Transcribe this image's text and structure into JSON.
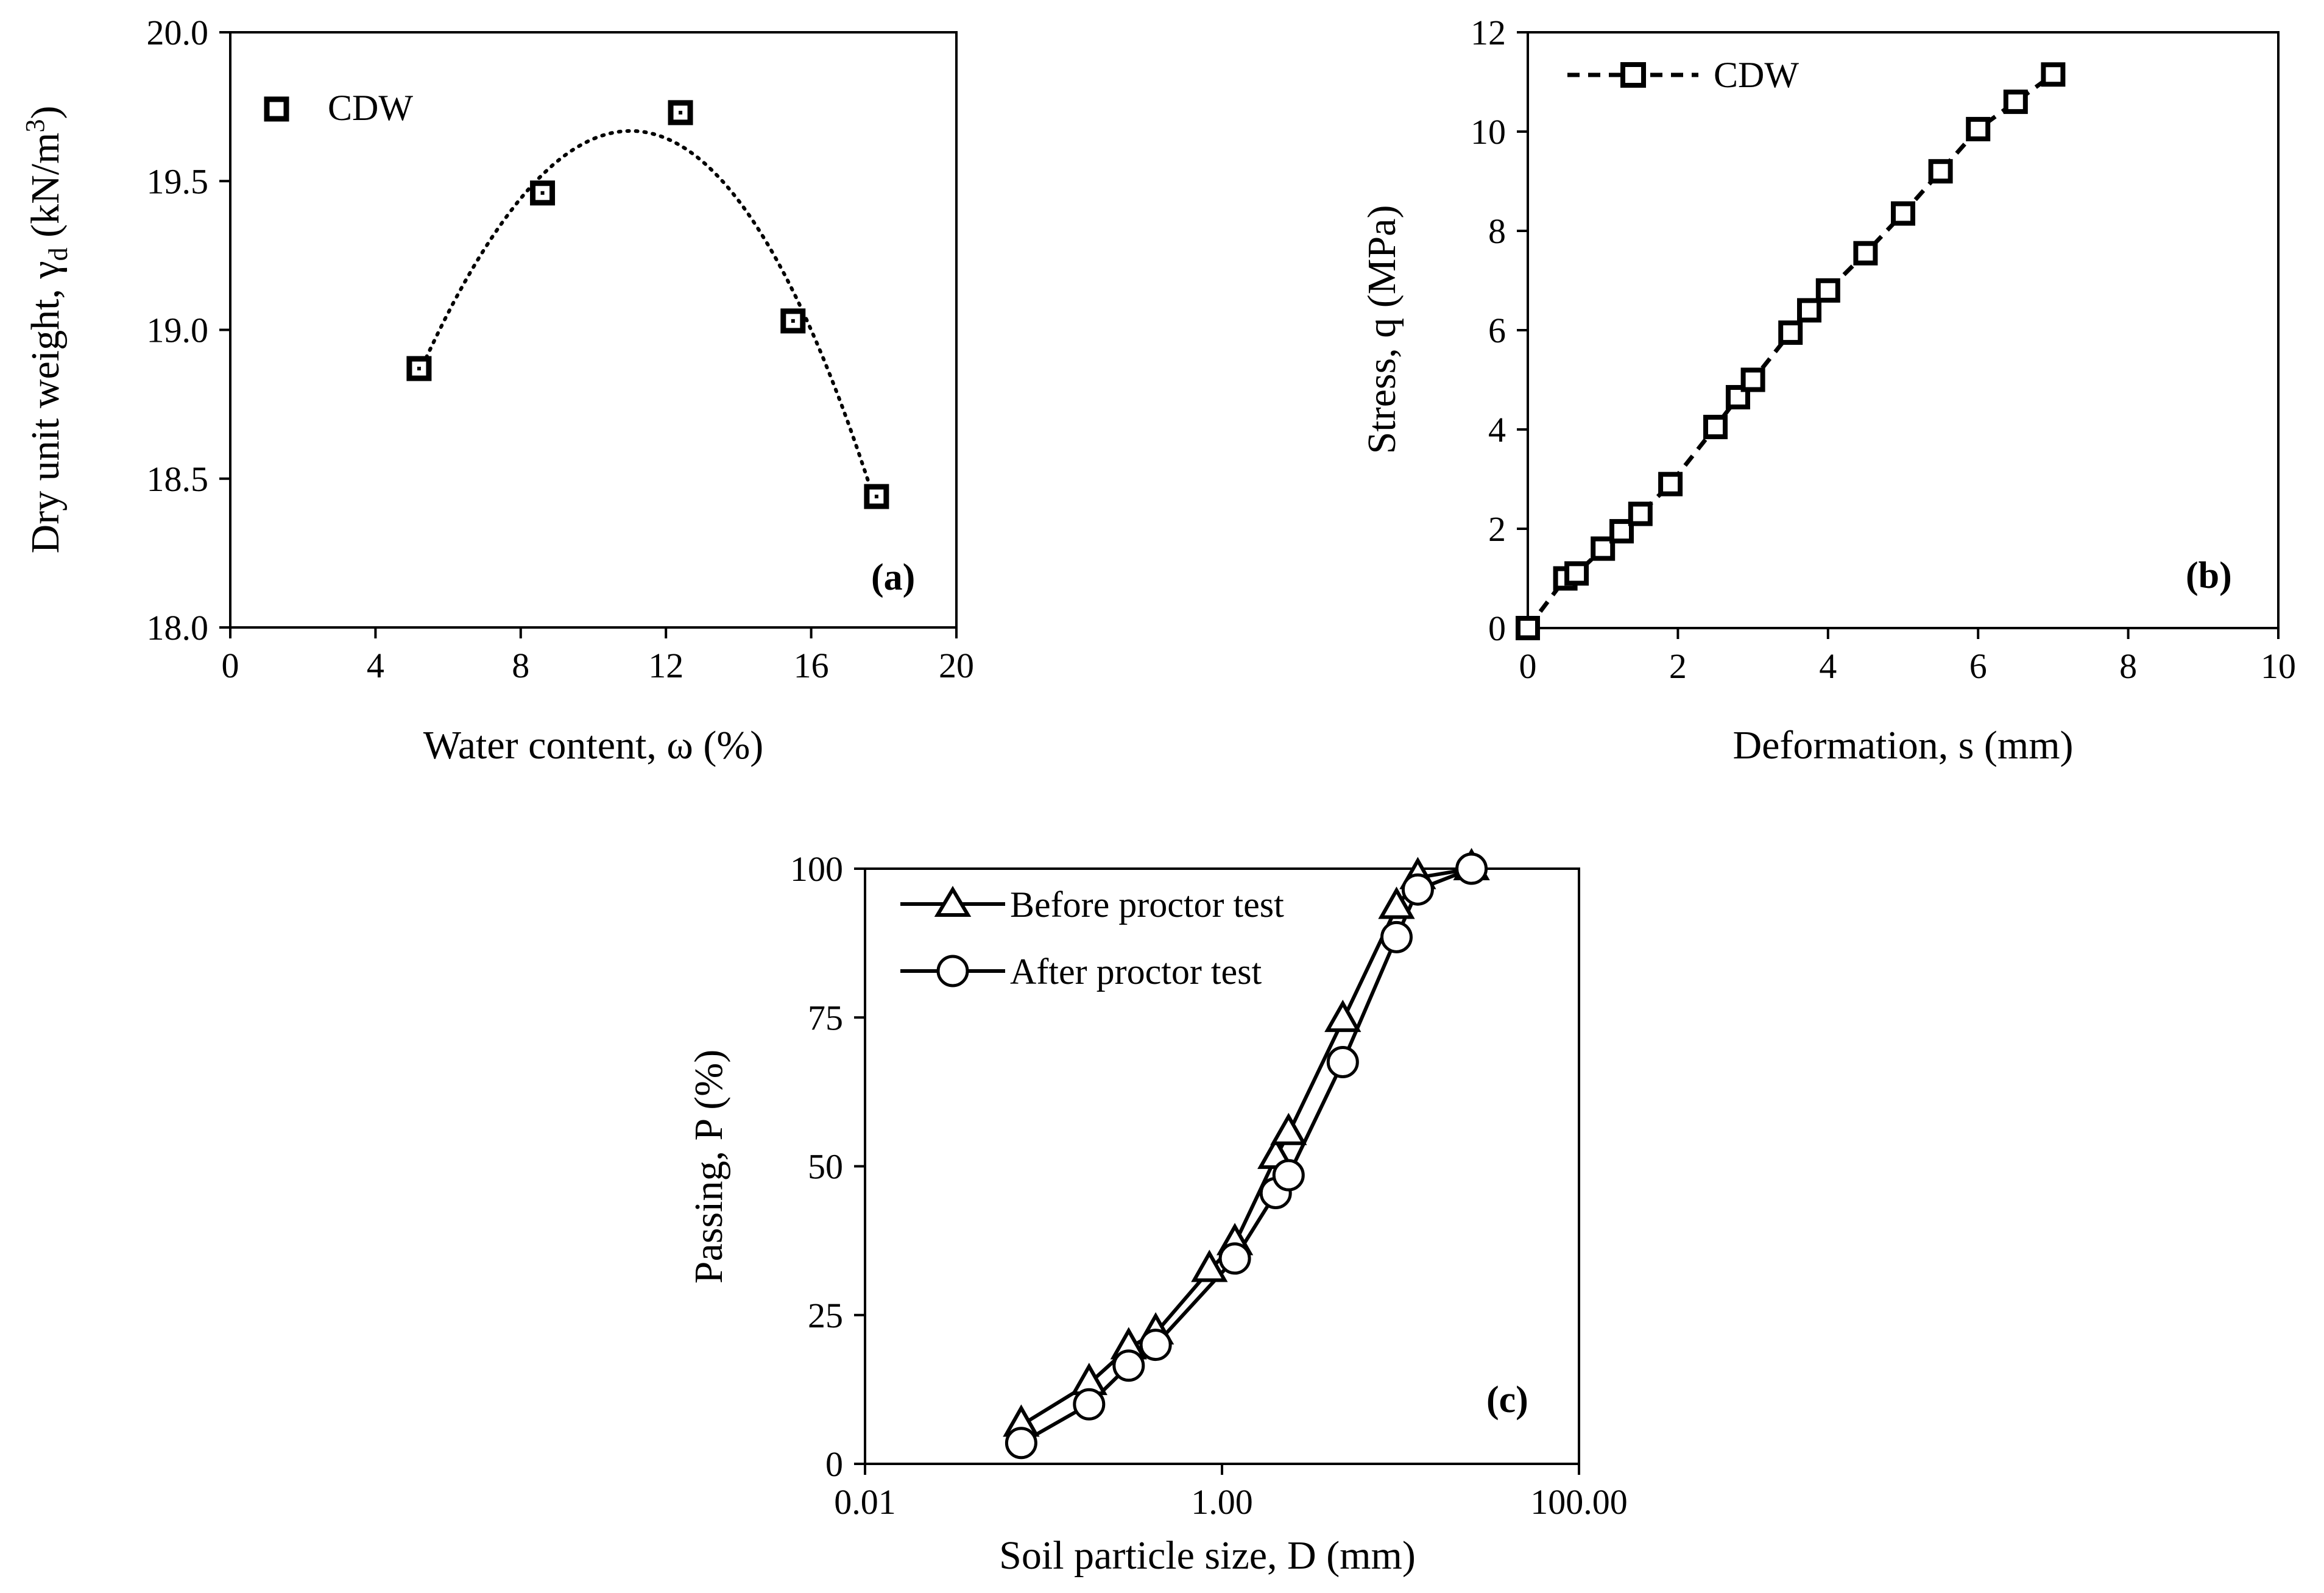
{
  "chart_data": [
    {
      "panel": "(a)",
      "type": "scatter",
      "xlabel": "Water content, ω (%)",
      "ylabel_main": "Dry unit weight, γ",
      "ylabel_sub": "d",
      "ylabel_unit_pre": " (kN/m",
      "ylabel_unit_sup": "3",
      "ylabel_unit_post": ")",
      "xlim": [
        0,
        20
      ],
      "ylim": [
        18.0,
        20.0
      ],
      "xticks": [
        "0",
        "4",
        "8",
        "12",
        "16",
        "20"
      ],
      "yticks": [
        "18.0",
        "18.5",
        "19.0",
        "19.5",
        "20.0"
      ],
      "legend_position": "top-left",
      "trendline": "dotted polynomial fit",
      "series": [
        {
          "name": "CDW",
          "marker": "square",
          "x": [
            5.2,
            8.6,
            12.4,
            15.5,
            17.8
          ],
          "y": [
            18.87,
            19.46,
            19.73,
            19.03,
            18.44
          ]
        }
      ]
    },
    {
      "panel": "(b)",
      "type": "line",
      "xlabel": "Deformation, s (mm)",
      "ylabel": "Stress, q (MPa)",
      "xlim": [
        0,
        10
      ],
      "ylim": [
        0,
        12
      ],
      "xticks": [
        "0",
        "2",
        "4",
        "6",
        "8",
        "10"
      ],
      "yticks": [
        "0",
        "2",
        "4",
        "6",
        "8",
        "10",
        "12"
      ],
      "legend_position": "top-left",
      "series": [
        {
          "name": "CDW",
          "marker": "square",
          "line": "dashed",
          "x": [
            0,
            0.5,
            0.65,
            1.0,
            1.25,
            1.5,
            1.9,
            2.5,
            2.8,
            3.0,
            3.5,
            3.75,
            4.0,
            4.5,
            5.0,
            5.5,
            6.0,
            6.5,
            7.0
          ],
          "y": [
            0,
            1.0,
            1.1,
            1.6,
            1.95,
            2.3,
            2.9,
            4.05,
            4.65,
            5.0,
            5.95,
            6.4,
            6.8,
            7.55,
            8.35,
            9.2,
            10.05,
            10.6,
            11.15
          ]
        }
      ]
    },
    {
      "panel": "(c)",
      "type": "line",
      "xlabel": "Soil particle size, D (mm)",
      "ylabel": "Passing, P (%)",
      "xscale": "log",
      "xlim": [
        0.01,
        100
      ],
      "ylim": [
        0,
        100
      ],
      "xticks": [
        "0.01",
        "1.00",
        "100.00"
      ],
      "yticks": [
        "0",
        "25",
        "50",
        "75",
        "100"
      ],
      "legend_position": "top-left",
      "series": [
        {
          "name": "Before proctor test",
          "marker": "triangle",
          "x": [
            0.075,
            0.18,
            0.3,
            0.425,
            0.85,
            1.18,
            2.0,
            2.36,
            4.75,
            9.5,
            12.5,
            25.0
          ],
          "y": [
            6.5,
            13.5,
            19.5,
            22.0,
            32.5,
            37.0,
            51.5,
            55.5,
            74.5,
            93.5,
            98.5,
            100
          ]
        },
        {
          "name": "After proctor test",
          "marker": "circle",
          "x": [
            0.075,
            0.18,
            0.3,
            0.425,
            1.18,
            2.0,
            2.36,
            4.75,
            9.5,
            12.5,
            25.0
          ],
          "y": [
            3.5,
            10.0,
            16.5,
            20.0,
            34.5,
            45.5,
            48.5,
            67.5,
            88.5,
            96.5,
            100
          ]
        }
      ]
    }
  ]
}
